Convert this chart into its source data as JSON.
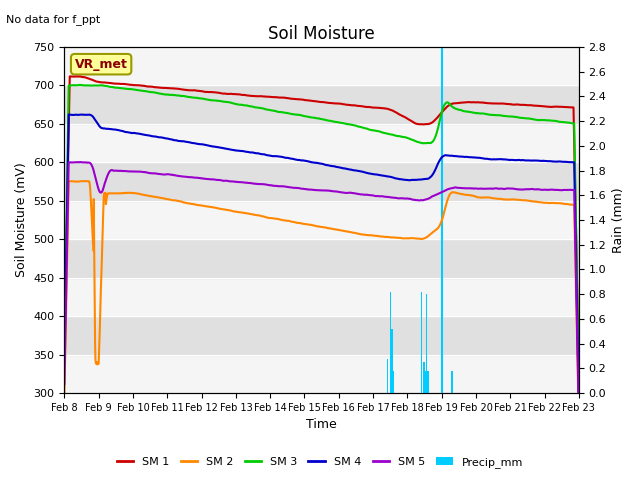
{
  "title": "Soil Moisture",
  "subtitle": "No data for f_ppt",
  "xlabel": "Time",
  "ylabel_left": "Soil Moisture (mV)",
  "ylabel_right": "Rain (mm)",
  "ylim_left": [
    300,
    750
  ],
  "ylim_right": [
    0.0,
    2.8
  ],
  "bg_color": "#e8e8e8",
  "plot_bg_light": "#f0f0f0",
  "plot_bg_dark": "#d8d8d8",
  "legend_box_label": "VR_met",
  "legend_box_color": "#ffff99",
  "legend_box_edge": "#999900",
  "series_colors": {
    "SM1": "#cc0000",
    "SM2": "#ff8800",
    "SM3": "#00cc00",
    "SM4": "#0000cc",
    "SM5": "#9900cc",
    "Precip": "#00ccff"
  },
  "tick_labels": [
    "Feb 8",
    "Feb 9",
    "Feb 10",
    "Feb 11",
    "Feb 12",
    "Feb 13",
    "Feb 14",
    "Feb 15",
    "Feb 16",
    "Feb 17",
    "Feb 18",
    "Feb 19",
    "Feb 20",
    "Feb 21",
    "Feb 22",
    "Feb 23"
  ],
  "yticks_left": [
    300,
    350,
    400,
    450,
    500,
    550,
    600,
    650,
    700,
    750
  ],
  "yticks_right": [
    0.0,
    0.2,
    0.4,
    0.6,
    0.8,
    1.0,
    1.2,
    1.4,
    1.6,
    1.8,
    2.0,
    2.2,
    2.4,
    2.6,
    2.8
  ]
}
